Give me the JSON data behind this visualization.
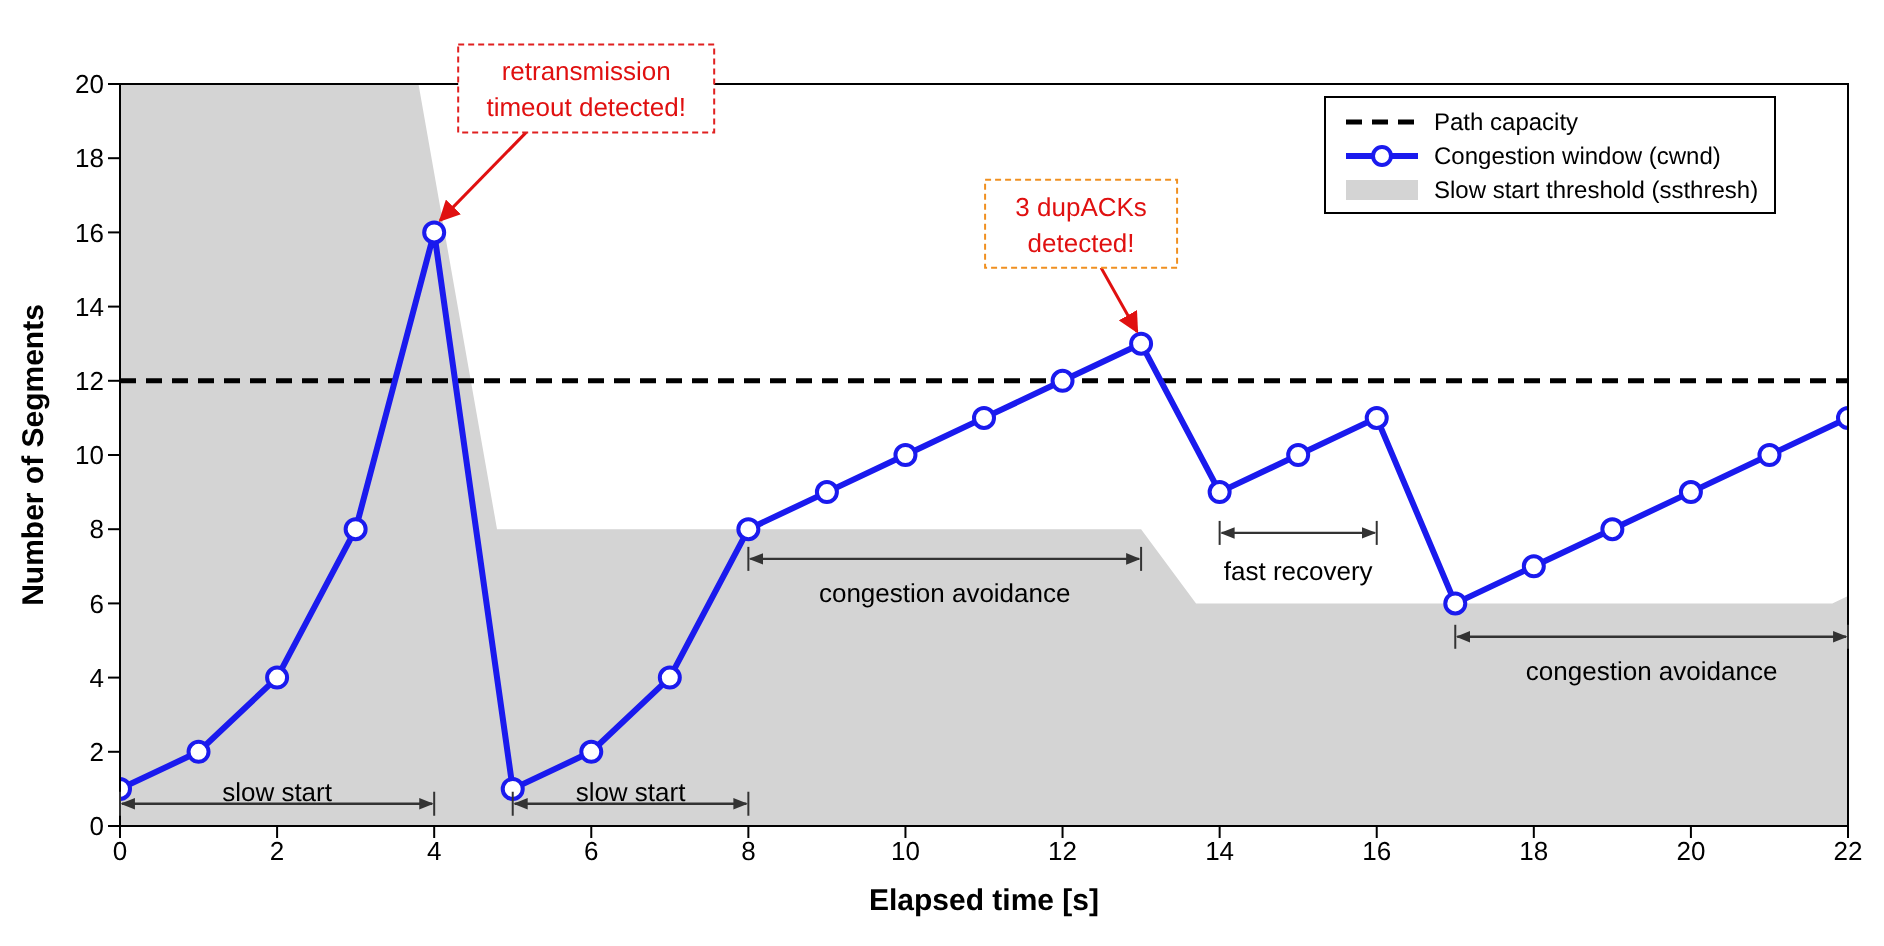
{
  "chart_data": {
    "type": "line",
    "xlabel": "Elapsed time [s]",
    "ylabel": "Number of Segments",
    "xlim": [
      0,
      22
    ],
    "xticks": [
      0,
      2,
      4,
      6,
      8,
      10,
      12,
      14,
      16,
      18,
      20,
      22
    ],
    "ylim": [
      0,
      20
    ],
    "yticks": [
      0,
      2,
      4,
      6,
      8,
      10,
      12,
      14,
      16,
      18,
      20
    ],
    "series": [
      {
        "name": "Slow start threshold (ssthresh)",
        "type": "area",
        "color": "#d4d4d4",
        "x": [
          0,
          3.8,
          4.8,
          13,
          13.7,
          21.8,
          22
        ],
        "values": [
          20,
          20,
          8,
          8,
          6,
          6,
          6.2
        ]
      },
      {
        "name": "Congestion window (cwnd)",
        "marker": "circle",
        "color": "#1a1aee",
        "x": [
          0,
          1,
          2,
          3,
          4,
          5,
          6,
          7,
          8,
          9,
          10,
          11,
          12,
          13,
          14,
          15,
          16,
          17,
          18,
          19,
          20,
          21,
          22
        ],
        "values": [
          1,
          2,
          4,
          8,
          16,
          1,
          2,
          4,
          8,
          9,
          10,
          11,
          12,
          13,
          9,
          10,
          11,
          6,
          7,
          8,
          9,
          10,
          11
        ]
      }
    ],
    "ref_lines": [
      {
        "axis": "y",
        "value": 12,
        "label": "Path capacity",
        "color": "#000000",
        "line_style": "dashed"
      }
    ],
    "annotations": [
      {
        "text": "retransmission timeout detected!",
        "x": 4,
        "y": 16
      },
      {
        "text": "3 dupACKs detected!",
        "x": 13,
        "y": 13
      },
      "slow start",
      "slow start",
      "congestion avoidance",
      "fast recovery",
      "congestion avoidance"
    ],
    "line_style": "solid",
    "legend": "top right"
  }
}
